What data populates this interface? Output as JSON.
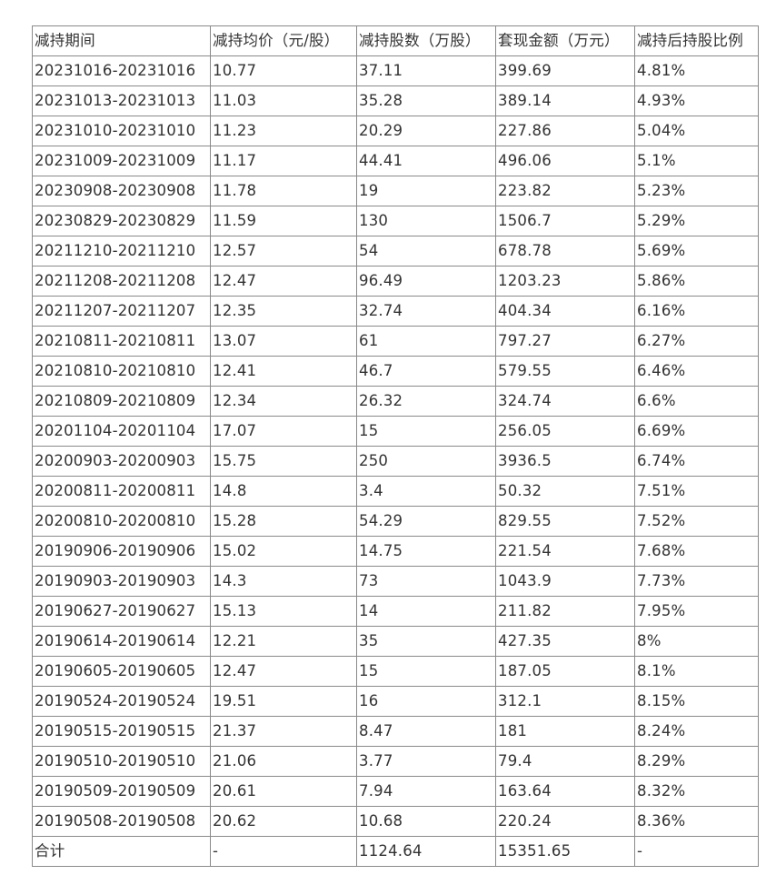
{
  "table": {
    "headers": [
      "减持期间",
      "减持均价（元/股）",
      "减持股数（万股）",
      "套现金额（万元）",
      "减持后持股比例"
    ],
    "rows": [
      [
        "20231016-20231016",
        "10.77",
        "37.11",
        "399.69",
        "4.81%"
      ],
      [
        "20231013-20231013",
        "11.03",
        "35.28",
        "389.14",
        "4.93%"
      ],
      [
        "20231010-20231010",
        "11.23",
        "20.29",
        "227.86",
        "5.04%"
      ],
      [
        "20231009-20231009",
        "11.17",
        "44.41",
        "496.06",
        "5.1%"
      ],
      [
        "20230908-20230908",
        "11.78",
        "19",
        "223.82",
        "5.23%"
      ],
      [
        "20230829-20230829",
        "11.59",
        "130",
        "1506.7",
        "5.29%"
      ],
      [
        "20211210-20211210",
        "12.57",
        "54",
        "678.78",
        "5.69%"
      ],
      [
        "20211208-20211208",
        "12.47",
        "96.49",
        "1203.23",
        "5.86%"
      ],
      [
        "20211207-20211207",
        "12.35",
        "32.74",
        "404.34",
        "6.16%"
      ],
      [
        "20210811-20210811",
        "13.07",
        "61",
        "797.27",
        "6.27%"
      ],
      [
        "20210810-20210810",
        "12.41",
        "46.7",
        "579.55",
        "6.46%"
      ],
      [
        "20210809-20210809",
        "12.34",
        "26.32",
        "324.74",
        "6.6%"
      ],
      [
        "20201104-20201104",
        "17.07",
        "15",
        "256.05",
        "6.69%"
      ],
      [
        "20200903-20200903",
        "15.75",
        "250",
        "3936.5",
        "6.74%"
      ],
      [
        "20200811-20200811",
        "14.8",
        "3.4",
        "50.32",
        "7.51%"
      ],
      [
        "20200810-20200810",
        "15.28",
        "54.29",
        "829.55",
        "7.52%"
      ],
      [
        "20190906-20190906",
        "15.02",
        "14.75",
        "221.54",
        "7.68%"
      ],
      [
        "20190903-20190903",
        "14.3",
        "73",
        "1043.9",
        "7.73%"
      ],
      [
        "20190627-20190627",
        "15.13",
        "14",
        "211.82",
        "7.95%"
      ],
      [
        "20190614-20190614",
        "12.21",
        "35",
        "427.35",
        "8%"
      ],
      [
        "20190605-20190605",
        "12.47",
        "15",
        "187.05",
        "8.1%"
      ],
      [
        "20190524-20190524",
        "19.51",
        "16",
        "312.1",
        "8.15%"
      ],
      [
        "20190515-20190515",
        "21.37",
        "8.47",
        "181",
        "8.24%"
      ],
      [
        "20190510-20190510",
        "21.06",
        "3.77",
        "79.4",
        "8.29%"
      ],
      [
        "20190509-20190509",
        "20.61",
        "7.94",
        "163.64",
        "8.32%"
      ],
      [
        "20190508-20190508",
        "20.62",
        "10.68",
        "220.24",
        "8.36%"
      ]
    ],
    "total": [
      "合计",
      "-",
      "1124.64",
      "15351.65",
      "-"
    ]
  }
}
